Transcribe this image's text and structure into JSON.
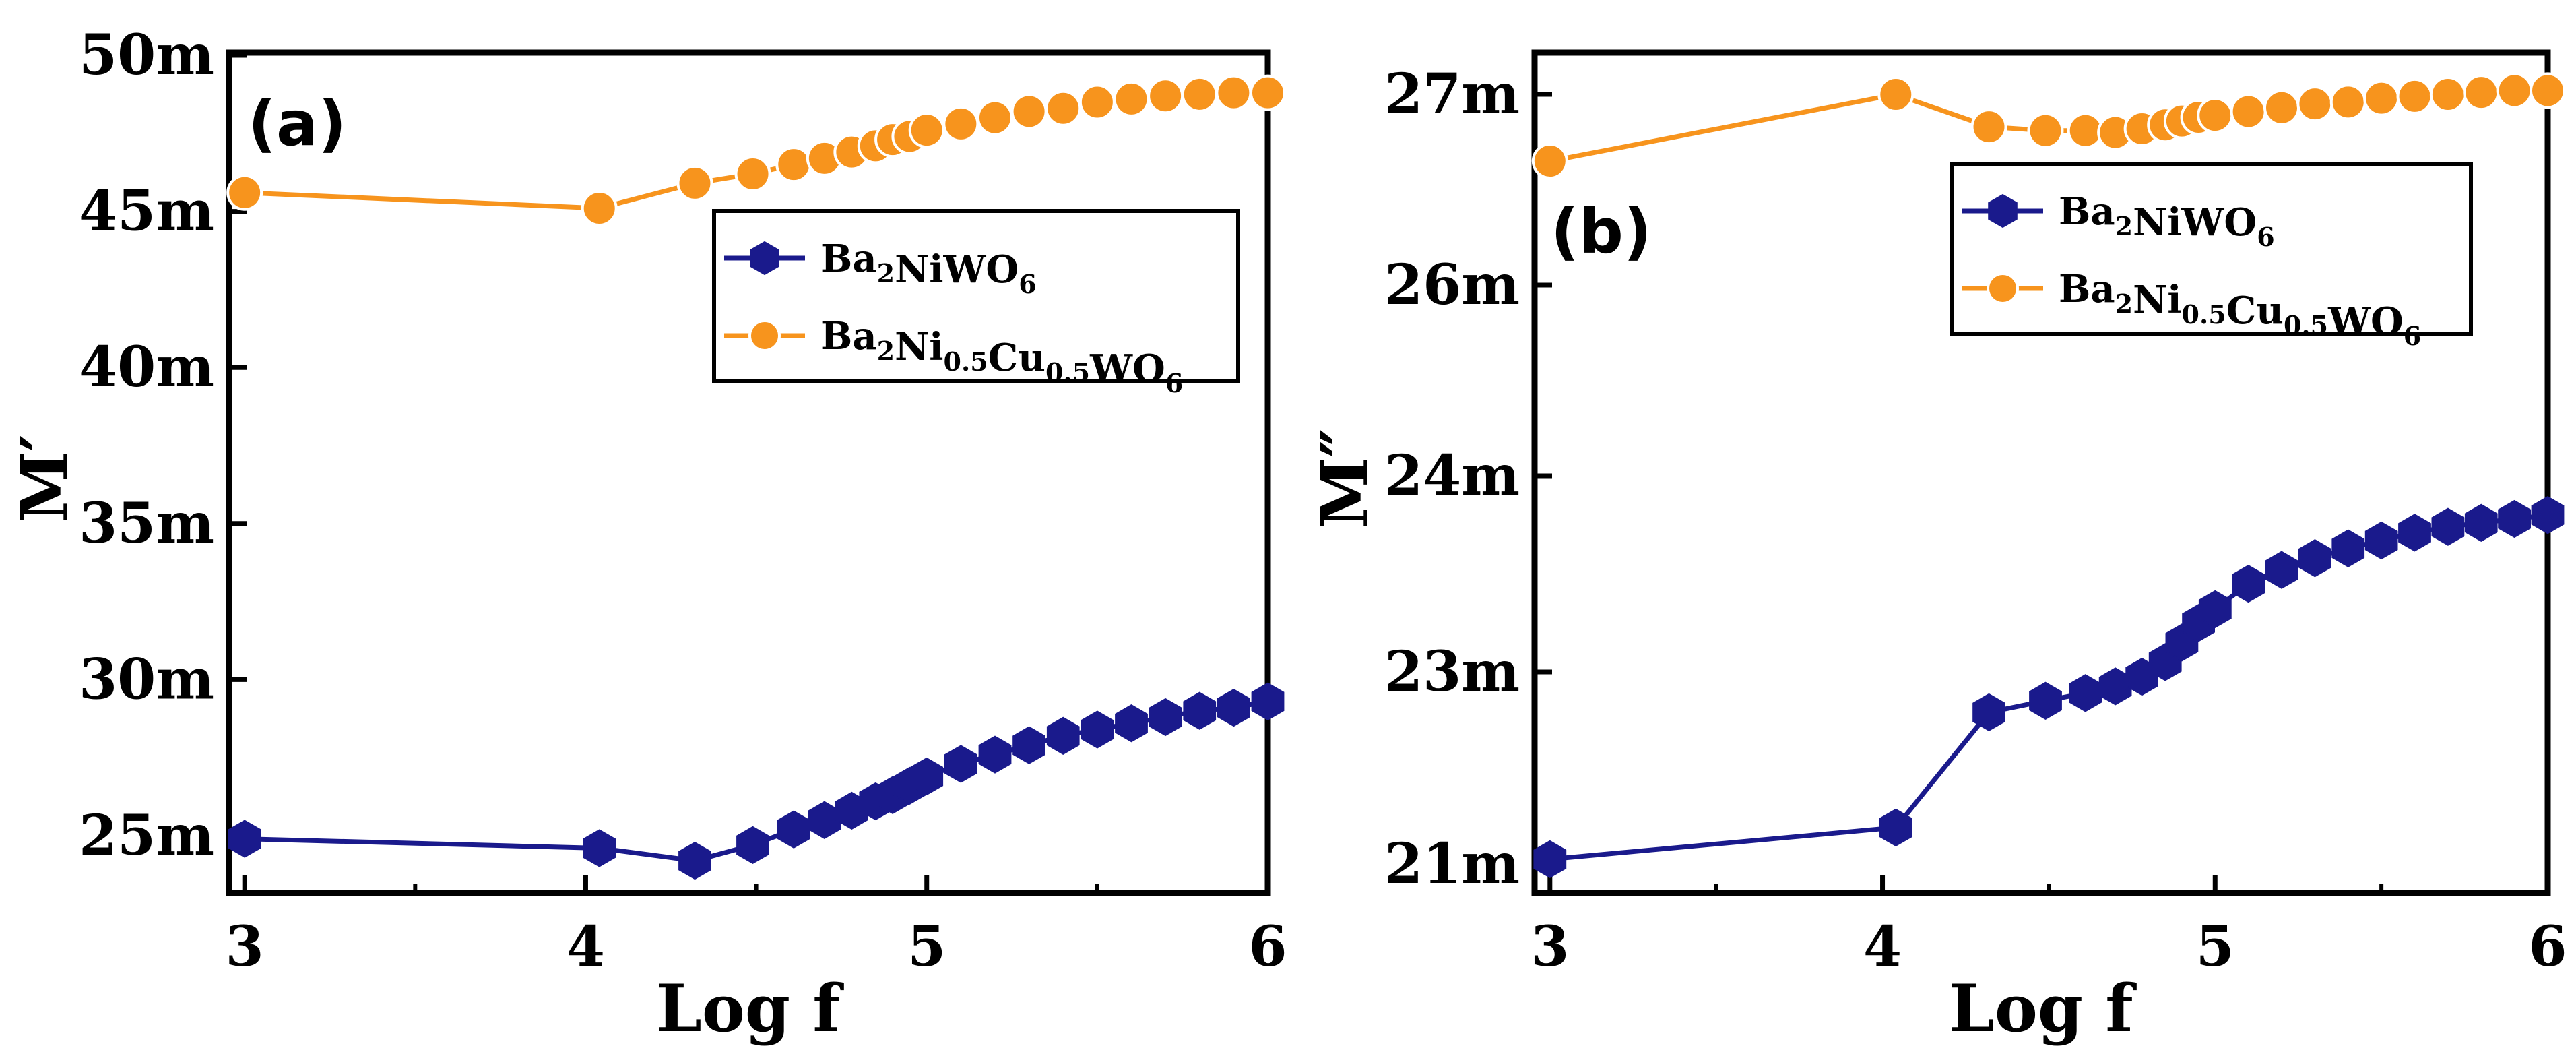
{
  "chart_data": [
    {
      "type": "line",
      "panel_label": "(a)",
      "xlabel": "Log f",
      "ylabel": "M′",
      "xlim": [
        2.97,
        6.0
      ],
      "ylim": [
        23.5,
        50
      ],
      "x_ticks": [
        3,
        4,
        5,
        6
      ],
      "x_tick_labels": [
        "3",
        "4",
        "5",
        "6"
      ],
      "y_ticks": [
        25,
        30,
        35,
        40,
        45,
        50
      ],
      "y_tick_labels": [
        "25m",
        "30m",
        "35m",
        "40m",
        "45m",
        "50m"
      ],
      "legend_position": "top-right",
      "series": [
        {
          "name": "Ba2NiWO6",
          "legend": {
            "parts": [
              {
                "t": "Ba"
              },
              {
                "t": "2",
                "sub": true
              },
              {
                "t": "NiWO"
              },
              {
                "t": "6",
                "sub": true
              }
            ]
          },
          "color": "#1a1a8c",
          "marker": "hexagon",
          "x": [
            3.0,
            4.04,
            4.32,
            4.49,
            4.61,
            4.7,
            4.78,
            4.85,
            4.9,
            4.95,
            5.0,
            5.1,
            5.2,
            5.3,
            5.4,
            5.5,
            5.6,
            5.7,
            5.8,
            5.9,
            6.0
          ],
          "y": [
            24.9,
            24.6,
            24.2,
            24.7,
            25.2,
            25.5,
            25.8,
            26.1,
            26.3,
            26.6,
            26.9,
            27.3,
            27.6,
            27.9,
            28.2,
            28.4,
            28.6,
            28.8,
            29.0,
            29.1,
            29.3
          ]
        },
        {
          "name": "Ba2Ni0.5Cu0.5WO6",
          "legend": {
            "parts": [
              {
                "t": "Ba"
              },
              {
                "t": "2",
                "sub": true
              },
              {
                "t": "Ni"
              },
              {
                "t": "0.5",
                "sub": true
              },
              {
                "t": "Cu"
              },
              {
                "t": "0.5",
                "sub": true
              },
              {
                "t": "WO"
              },
              {
                "t": "6",
                "sub": true
              }
            ]
          },
          "color": "#f7941d",
          "marker": "circle",
          "x": [
            3.0,
            4.04,
            4.32,
            4.49,
            4.61,
            4.7,
            4.78,
            4.85,
            4.9,
            4.95,
            5.0,
            5.1,
            5.2,
            5.3,
            5.4,
            5.5,
            5.6,
            5.7,
            5.8,
            5.9,
            6.0
          ],
          "y": [
            45.6,
            45.1,
            45.9,
            46.2,
            46.5,
            46.7,
            46.9,
            47.1,
            47.3,
            47.4,
            47.6,
            47.8,
            48.0,
            48.2,
            48.3,
            48.5,
            48.6,
            48.7,
            48.75,
            48.8,
            48.8
          ]
        }
      ]
    },
    {
      "type": "line",
      "panel_label": "(b)",
      "xlabel": "Log f",
      "ylabel": "M″",
      "xlim": [
        2.97,
        6.0
      ],
      "y_scale": "broken",
      "y_ticks": [
        21,
        23,
        24,
        26,
        27
      ],
      "y_tick_labels": [
        "21m",
        "23m",
        "24m",
        "26m",
        "27m"
      ],
      "x_ticks": [
        3,
        4,
        5,
        6
      ],
      "x_tick_labels": [
        "3",
        "4",
        "5",
        "6"
      ],
      "legend_position": "top-right",
      "series": [
        {
          "name": "Ba2NiWO6",
          "legend": {
            "parts": [
              {
                "t": "Ba"
              },
              {
                "t": "2",
                "sub": true
              },
              {
                "t": "NiWO"
              },
              {
                "t": "6",
                "sub": true
              }
            ]
          },
          "color": "#1a1a8c",
          "marker": "hexagon",
          "x": [
            3.0,
            4.04,
            4.32,
            4.49,
            4.61,
            4.7,
            4.78,
            4.85,
            4.9,
            4.95,
            5.0,
            5.1,
            5.2,
            5.3,
            5.4,
            5.5,
            5.6,
            5.7,
            5.8,
            5.9,
            6.0
          ],
          "y": [
            21.05,
            21.38,
            22.58,
            22.7,
            22.78,
            22.85,
            22.95,
            23.05,
            23.15,
            23.25,
            23.32,
            23.45,
            23.52,
            23.58,
            23.63,
            23.67,
            23.71,
            23.74,
            23.76,
            23.78,
            23.8
          ]
        },
        {
          "name": "Ba2Ni0.5Cu0.5WO6",
          "legend": {
            "parts": [
              {
                "t": "Ba"
              },
              {
                "t": "2",
                "sub": true
              },
              {
                "t": "Ni"
              },
              {
                "t": "0.5",
                "sub": true
              },
              {
                "t": "Cu"
              },
              {
                "t": "0.5",
                "sub": true
              },
              {
                "t": "WO"
              },
              {
                "t": "6",
                "sub": true
              }
            ]
          },
          "color": "#f7941d",
          "marker": "circle",
          "x": [
            3.0,
            4.04,
            4.32,
            4.49,
            4.61,
            4.7,
            4.78,
            4.85,
            4.9,
            4.95,
            5.0,
            5.1,
            5.2,
            5.3,
            5.4,
            5.5,
            5.6,
            5.7,
            5.8,
            5.9,
            6.0
          ],
          "y": [
            26.65,
            27.0,
            26.83,
            26.81,
            26.81,
            26.8,
            26.82,
            26.84,
            26.86,
            26.88,
            26.89,
            26.91,
            26.93,
            26.95,
            26.96,
            26.98,
            26.99,
            27.0,
            27.01,
            27.02,
            27.02
          ]
        }
      ]
    }
  ]
}
